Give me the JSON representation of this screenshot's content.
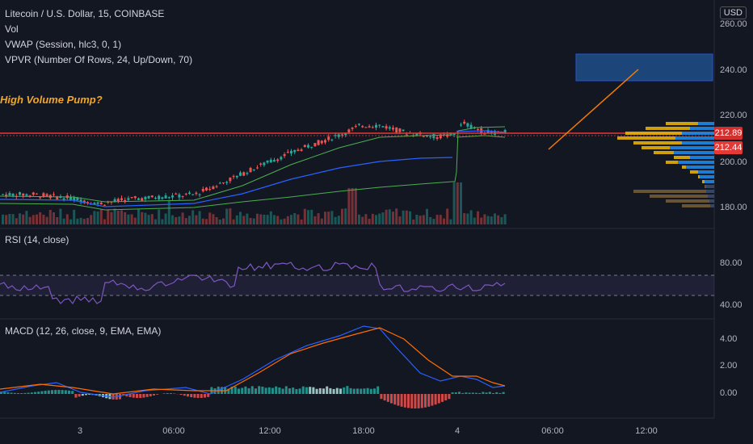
{
  "header": {
    "symbol": "Litecoin / U.S. Dollar, 15, COINBASE",
    "indicators": [
      "Vol",
      "VWAP (Session, hlc3, 0, 1)",
      "VPVR (Number Of Rows, 24, Up/Down, 70)"
    ]
  },
  "annotation": "High Volume Pump?",
  "currency_button": "USD",
  "price_axis": {
    "ticks": [
      "260.00",
      "240.00",
      "220.00",
      "200.00",
      "180.00"
    ],
    "tag_upper": "212.89",
    "tag_lower": "212.44",
    "tag_upper_color": "#d32f2f",
    "tag_lower_color": "#e53935"
  },
  "rsi": {
    "label": "RSI (14, close)",
    "ticks": [
      "80.00",
      "40.00"
    ]
  },
  "macd": {
    "label": "MACD (12, 26, close, 9, EMA, EMA)",
    "ticks": [
      "4.00",
      "2.00",
      "0.00"
    ]
  },
  "time_axis": [
    "3",
    "06:00",
    "12:00",
    "18:00",
    "4",
    "06:00",
    "12:00"
  ],
  "colors": {
    "up": "#26a69a",
    "down": "#ef5350",
    "background": "#131722"
  }
}
